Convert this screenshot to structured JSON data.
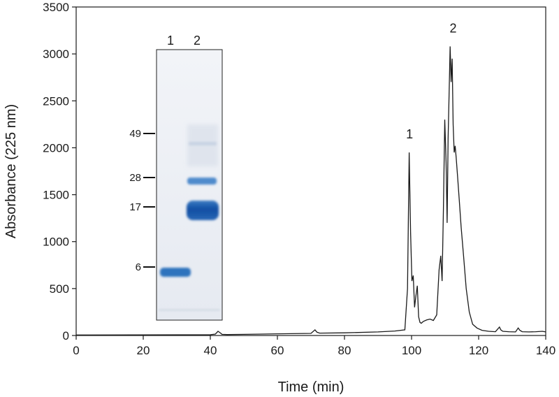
{
  "chart_data": {
    "type": "line",
    "title": "",
    "xlabel": "Time (min)",
    "ylabel": "Absorbance (225 nm)",
    "xlim": [
      0,
      140
    ],
    "ylim": [
      0,
      3500
    ],
    "xticks": [
      0,
      20,
      40,
      60,
      80,
      100,
      120,
      140
    ],
    "yticks": [
      0,
      500,
      1000,
      1500,
      2000,
      2500,
      3000,
      3500
    ],
    "grid": false,
    "series": [
      {
        "x": [
          0,
          40,
          41.5,
          42.3,
          42.9,
          43.5,
          45,
          50,
          60,
          70,
          71.2,
          71.8,
          72.6,
          80,
          90,
          95,
          98,
          98.8,
          99.3,
          99.7,
          100.1,
          100.5,
          100.9,
          101.3,
          101.7,
          102.1,
          102.5,
          102.9,
          103.5,
          104.5,
          105.5,
          106.5,
          107.5,
          108.2,
          108.7,
          109.1,
          109.5,
          109.9,
          110.3,
          110.6,
          110.9,
          111.2,
          111.5,
          111.8,
          112.1,
          112.4,
          112.7,
          113.0,
          113.3,
          113.7,
          114.2,
          114.8,
          115.5,
          116.3,
          117.2,
          118.2,
          119.5,
          121,
          123,
          125,
          126.2,
          126.6,
          127.2,
          129,
          131,
          131.8,
          132.3,
          133,
          135,
          137,
          139,
          140
        ],
        "y": [
          5,
          8,
          15,
          45,
          30,
          12,
          10,
          12,
          18,
          22,
          60,
          35,
          25,
          28,
          38,
          48,
          60,
          500,
          1950,
          1100,
          580,
          640,
          300,
          420,
          530,
          200,
          140,
          130,
          150,
          165,
          175,
          160,
          220,
          700,
          850,
          580,
          1350,
          2300,
          1850,
          1200,
          2100,
          2600,
          3080,
          2700,
          2950,
          2250,
          1950,
          2020,
          1900,
          1700,
          1450,
          1150,
          850,
          500,
          250,
          120,
          80,
          55,
          45,
          40,
          90,
          60,
          45,
          40,
          38,
          80,
          55,
          40,
          38,
          40,
          45,
          38
        ]
      }
    ],
    "annotations": [
      {
        "text": "1",
        "x": 99.4,
        "y": 2100
      },
      {
        "text": "2",
        "x": 112.4,
        "y": 3230
      }
    ],
    "inset": {
      "type": "sds-page-gel",
      "lane_labels": [
        "1",
        "2"
      ],
      "marker_labels": [
        "49",
        "28",
        "17",
        "6"
      ],
      "band_color": "#1f5fae"
    }
  }
}
